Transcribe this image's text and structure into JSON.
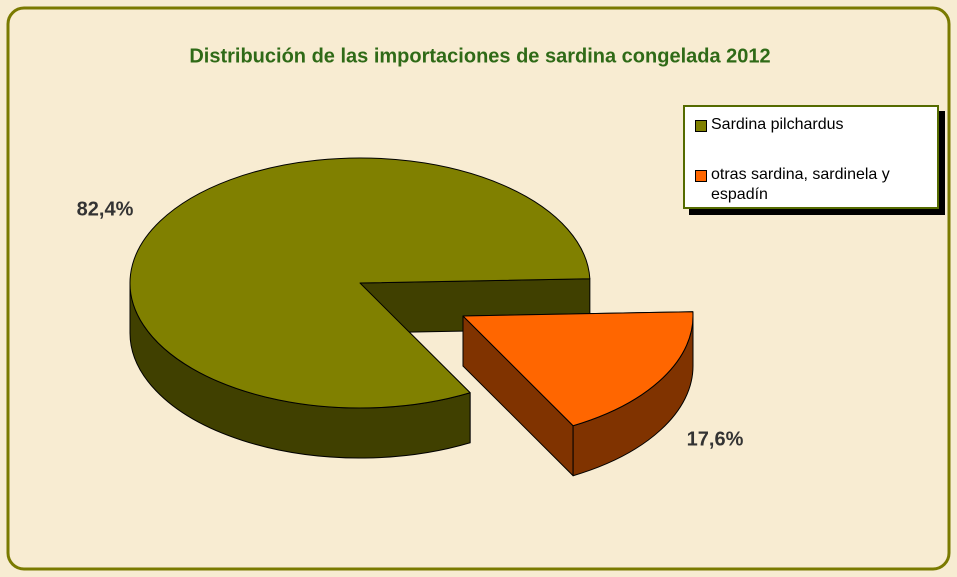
{
  "chart_data": {
    "type": "pie3d",
    "title": "Distribución de las importaciones de sardina congelada 2012",
    "categories": [
      "Sardina pilchardus",
      "otras sardina, sardinela y espadín"
    ],
    "values": [
      82.4,
      17.6
    ],
    "value_labels": [
      "82,4%",
      "17,6%"
    ],
    "colors": [
      "#808000",
      "#ff6600"
    ],
    "legend": "right"
  }
}
